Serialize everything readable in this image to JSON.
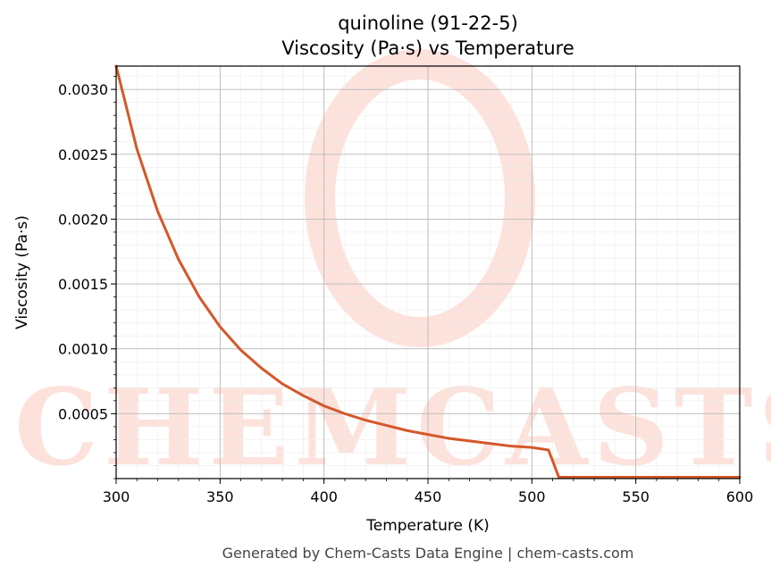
{
  "chart_data": {
    "type": "line",
    "title": "quinoline (91-22-5)",
    "subtitle": "Viscosity (Pa·s) vs Temperature",
    "xlabel": "Temperature (K)",
    "ylabel": "Viscosity (Pa·s)",
    "xlim": [
      300,
      600
    ],
    "ylim": [
      0.0,
      0.00318
    ],
    "xticks": [
      300,
      350,
      400,
      450,
      500,
      550,
      600
    ],
    "xtick_labels": [
      "300",
      "350",
      "400",
      "450",
      "500",
      "550",
      "600"
    ],
    "yticks": [
      0.0005,
      0.001,
      0.0015,
      0.002,
      0.0025,
      0.003
    ],
    "ytick_labels": [
      "0.0005",
      "0.0010",
      "0.0015",
      "0.0020",
      "0.0025",
      "0.0030"
    ],
    "grid": true,
    "series": [
      {
        "color": "#d4582a",
        "x": [
          300,
          310,
          320,
          330,
          340,
          350,
          360,
          370,
          380,
          390,
          400,
          410,
          420,
          430,
          440,
          450,
          460,
          470,
          480,
          490,
          500,
          508,
          513,
          514,
          550,
          600
        ],
        "y": [
          0.00318,
          0.00254,
          0.00206,
          0.00169,
          0.0014,
          0.00117,
          0.00099,
          0.00085,
          0.00073,
          0.00064,
          0.00056,
          0.0005,
          0.00045,
          0.00041,
          0.00037,
          0.00034,
          0.00031,
          0.00029,
          0.00027,
          0.00025,
          0.00024,
          0.00022,
          1e-05,
          1e-05,
          1e-05,
          1e-05
        ]
      }
    ],
    "watermark": "CHEMCASTS"
  },
  "footer": "Generated by Chem-Casts Data Engine | chem-casts.com"
}
